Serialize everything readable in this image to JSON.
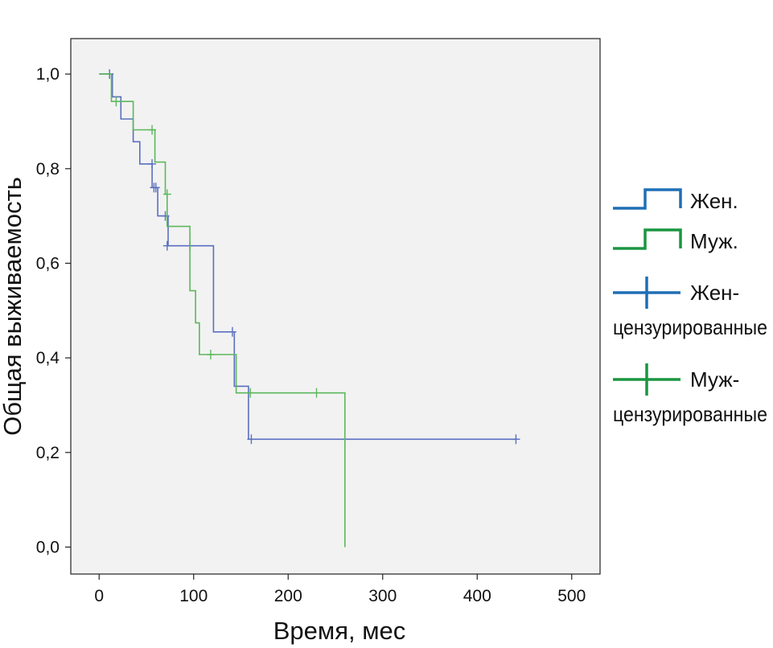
{
  "chart_data": {
    "type": "line",
    "step": true,
    "xlabel": "Время, мес",
    "ylabel": "Общая выживаемость",
    "xlim": [
      -30,
      530
    ],
    "ylim": [
      -0.057,
      1.075
    ],
    "x_ticks": [
      0,
      100,
      200,
      300,
      400,
      500
    ],
    "x_tick_labels": [
      "0",
      "100",
      "200",
      "300",
      "400",
      "500"
    ],
    "y_ticks": [
      0.0,
      0.2,
      0.4,
      0.6,
      0.8,
      1.0
    ],
    "y_tick_labels": [
      "0,0",
      "0,2",
      "0,4",
      "0,6",
      "0,8",
      "1,0"
    ],
    "grid": false,
    "legend_position": "right",
    "plot_background": "#f2f2f2",
    "series": [
      {
        "name": "Жен.",
        "color": "#5a6fc0",
        "legend_color": "#1f6fb5",
        "x": [
          0,
          14,
          14,
          23,
          23,
          36,
          36,
          43,
          43,
          56,
          56,
          62,
          62,
          73,
          73,
          121,
          121,
          143,
          143,
          158,
          158,
          441
        ],
        "y": [
          1.0,
          1.0,
          0.952,
          0.952,
          0.905,
          0.905,
          0.857,
          0.857,
          0.81,
          0.81,
          0.76,
          0.76,
          0.7,
          0.7,
          0.637,
          0.637,
          0.455,
          0.455,
          0.34,
          0.34,
          0.228,
          0.228
        ],
        "censored_x": [
          11,
          56,
          58,
          60,
          70,
          72,
          96,
          141,
          161,
          441
        ],
        "censored_y": [
          1.0,
          0.81,
          0.76,
          0.76,
          0.7,
          0.637,
          0.637,
          0.455,
          0.228,
          0.228
        ]
      },
      {
        "name": "Муж.",
        "color": "#5cb85c",
        "legend_color": "#1a9641",
        "x": [
          0,
          13,
          13,
          36,
          36,
          59,
          59,
          70,
          70,
          72,
          72,
          96,
          96,
          102,
          102,
          106,
          106,
          145,
          145,
          260,
          260
        ],
        "y": [
          1.0,
          1.0,
          0.942,
          0.942,
          0.882,
          0.882,
          0.814,
          0.814,
          0.746,
          0.746,
          0.678,
          0.678,
          0.542,
          0.542,
          0.474,
          0.474,
          0.407,
          0.407,
          0.326,
          0.326,
          0.0
        ],
        "censored_x": [
          18,
          56,
          72,
          118,
          160,
          230
        ],
        "censored_y": [
          0.942,
          0.882,
          0.746,
          0.407,
          0.326,
          0.326
        ]
      }
    ],
    "legend": [
      {
        "kind": "line",
        "series": 0,
        "label": "Жен."
      },
      {
        "kind": "line",
        "series": 1,
        "label": "Муж."
      },
      {
        "kind": "censor",
        "series": 0,
        "label_lines": [
          "Жен-",
          "цензурированные"
        ]
      },
      {
        "kind": "censor",
        "series": 1,
        "label_lines": [
          "Муж-",
          "цензурированные"
        ]
      }
    ]
  }
}
